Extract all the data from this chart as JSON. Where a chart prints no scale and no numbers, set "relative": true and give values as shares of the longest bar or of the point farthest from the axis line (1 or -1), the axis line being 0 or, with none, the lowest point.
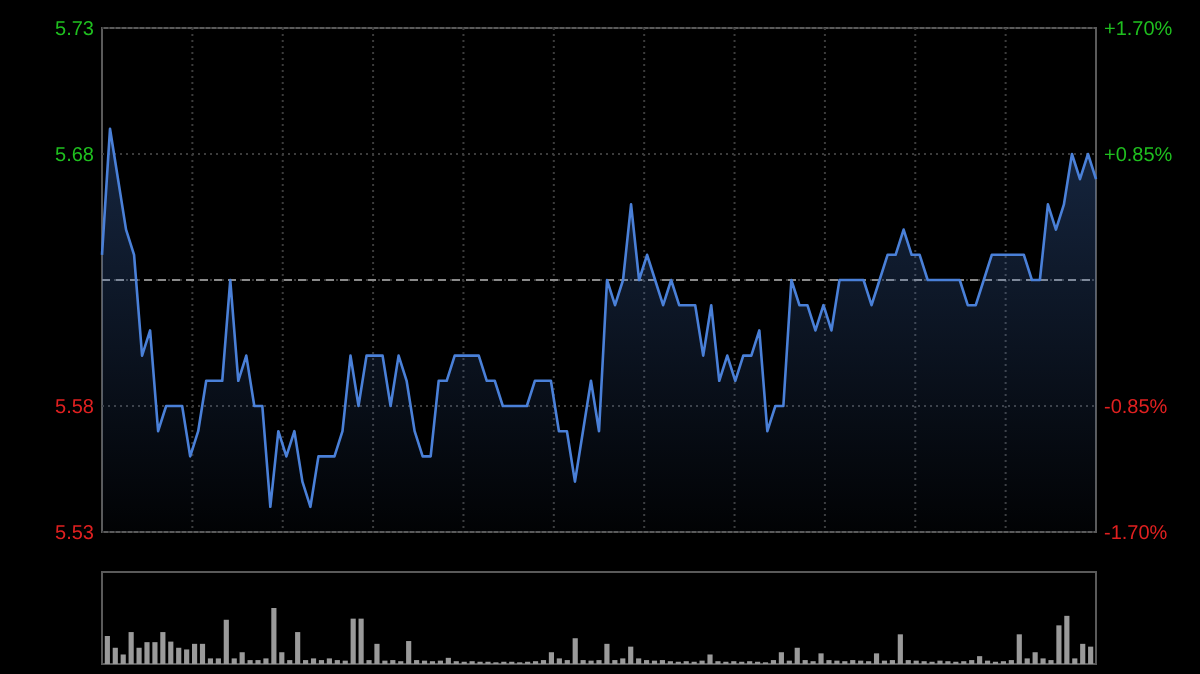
{
  "chart_data": [
    {
      "type": "area",
      "categories": [
        null,
        null,
        null,
        null,
        null,
        null,
        null,
        null,
        null,
        null,
        null,
        null,
        null,
        null,
        null,
        null,
        null,
        null,
        null,
        null,
        null,
        null,
        null,
        null,
        null,
        null,
        null,
        null,
        null,
        null,
        null,
        null,
        null,
        null,
        null,
        null,
        null,
        null,
        null,
        null,
        null,
        null,
        null,
        null,
        null,
        null,
        null,
        null,
        null,
        null,
        null,
        null,
        null,
        null,
        null,
        null,
        null,
        null,
        null,
        null,
        null,
        null,
        null,
        null,
        null,
        null,
        null,
        null,
        null,
        null,
        null,
        null,
        null,
        null,
        null,
        null,
        null,
        null,
        null,
        null,
        null,
        null,
        null,
        null,
        null,
        null,
        null,
        null,
        null,
        null,
        null,
        null,
        null,
        null,
        null,
        null,
        null,
        null,
        null,
        null,
        null,
        null,
        null,
        null,
        null,
        null,
        null,
        null,
        null,
        null,
        null,
        null,
        null,
        null,
        null,
        null,
        null,
        null,
        null,
        null,
        null,
        null,
        null,
        null,
        null
      ],
      "series": [
        {
          "color": "#4a80d8",
          "values": [
            5.64,
            5.69,
            5.67,
            5.65,
            5.64,
            5.6,
            5.61,
            5.57,
            5.58,
            5.58,
            5.58,
            5.56,
            5.57,
            5.59,
            5.59,
            5.59,
            5.63,
            5.59,
            5.6,
            5.58,
            5.58,
            5.54,
            5.57,
            5.56,
            5.57,
            5.55,
            5.54,
            5.56,
            5.56,
            5.56,
            5.57,
            5.6,
            5.58,
            5.6,
            5.6,
            5.6,
            5.58,
            5.6,
            5.59,
            5.57,
            5.56,
            5.56,
            5.59,
            5.59,
            5.6,
            5.6,
            5.6,
            5.6,
            5.59,
            5.59,
            5.58,
            5.58,
            5.58,
            5.58,
            5.59,
            5.59,
            5.59,
            5.57,
            5.57,
            5.55,
            5.57,
            5.59,
            5.57,
            5.63,
            5.62,
            5.63,
            5.66,
            5.63,
            5.64,
            5.63,
            5.62,
            5.63,
            5.62,
            5.62,
            5.62,
            5.6,
            5.62,
            5.59,
            5.6,
            5.59,
            5.6,
            5.6,
            5.61,
            5.57,
            5.58,
            5.58,
            5.63,
            5.62,
            5.62,
            5.61,
            5.62,
            5.61,
            5.63,
            5.63,
            5.63,
            5.63,
            5.62,
            5.63,
            5.64,
            5.64,
            5.65,
            5.64,
            5.64,
            5.63,
            5.63,
            5.63,
            5.63,
            5.63,
            5.62,
            5.62,
            5.63,
            5.64,
            5.64,
            5.64,
            5.64,
            5.64,
            5.63,
            5.63,
            5.66,
            5.65,
            5.66,
            5.68,
            5.67,
            5.68,
            5.67
          ]
        }
      ],
      "ylim": [
        5.53,
        5.73
      ],
      "yticks": [
        5.73,
        5.68,
        {
          "value": 5.63,
          "label": null
        },
        5.58,
        5.53
      ],
      "y2lim": [
        -1.7,
        1.7
      ],
      "y2ticks": [
        {
          "value": 1.7,
          "label": "+1.70%"
        },
        {
          "value": 0.85,
          "label": "+0.85%"
        },
        {
          "value": -0.85,
          "label": "-0.85%"
        },
        {
          "value": -1.7,
          "label": "-1.70%"
        }
      ],
      "ref_lines": [
        {
          "axis": "y",
          "value": 5.63,
          "line_style": "dashed",
          "color": "#8a8a8a"
        }
      ],
      "grid": true
    },
    {
      "type": "bar",
      "relative": true,
      "color": "#9a9a9a",
      "categories": [
        null,
        null,
        null,
        null,
        null,
        null,
        null,
        null,
        null,
        null,
        null,
        null,
        null,
        null,
        null,
        null,
        null,
        null,
        null,
        null,
        null,
        null,
        null,
        null,
        null,
        null,
        null,
        null,
        null,
        null,
        null,
        null,
        null,
        null,
        null,
        null,
        null,
        null,
        null,
        null,
        null,
        null,
        null,
        null,
        null,
        null,
        null,
        null,
        null,
        null,
        null,
        null,
        null,
        null,
        null,
        null,
        null,
        null,
        null,
        null,
        null,
        null,
        null,
        null,
        null,
        null,
        null,
        null,
        null,
        null,
        null,
        null,
        null,
        null,
        null,
        null,
        null,
        null,
        null,
        null,
        null,
        null,
        null,
        null,
        null,
        null,
        null,
        null,
        null,
        null,
        null,
        null,
        null,
        null,
        null,
        null,
        null,
        null,
        null,
        null,
        null,
        null,
        null,
        null,
        null,
        null,
        null,
        null,
        null,
        null,
        null,
        null,
        null,
        null,
        null,
        null,
        null,
        null,
        null,
        null,
        null,
        null,
        null,
        null,
        null
      ],
      "values": [
        0.5,
        0.29,
        0.17,
        0.57,
        0.29,
        0.39,
        0.39,
        0.57,
        0.4,
        0.29,
        0.26,
        0.36,
        0.36,
        0.1,
        0.1,
        0.79,
        0.1,
        0.21,
        0.07,
        0.07,
        0.1,
        1.0,
        0.21,
        0.07,
        0.57,
        0.07,
        0.1,
        0.07,
        0.1,
        0.07,
        0.06,
        0.81,
        0.81,
        0.07,
        0.36,
        0.06,
        0.07,
        0.05,
        0.41,
        0.07,
        0.06,
        0.05,
        0.06,
        0.11,
        0.05,
        0.04,
        0.05,
        0.04,
        0.04,
        0.03,
        0.04,
        0.04,
        0.03,
        0.04,
        0.05,
        0.07,
        0.21,
        0.1,
        0.07,
        0.46,
        0.07,
        0.06,
        0.07,
        0.36,
        0.07,
        0.1,
        0.31,
        0.1,
        0.07,
        0.06,
        0.07,
        0.05,
        0.04,
        0.05,
        0.04,
        0.06,
        0.17,
        0.05,
        0.04,
        0.05,
        0.04,
        0.05,
        0.04,
        0.03,
        0.07,
        0.21,
        0.06,
        0.29,
        0.07,
        0.05,
        0.19,
        0.07,
        0.06,
        0.05,
        0.07,
        0.06,
        0.05,
        0.19,
        0.06,
        0.07,
        0.53,
        0.07,
        0.06,
        0.05,
        0.04,
        0.06,
        0.05,
        0.04,
        0.05,
        0.07,
        0.14,
        0.06,
        0.04,
        0.05,
        0.07,
        0.53,
        0.1,
        0.21,
        0.1,
        0.07,
        0.69,
        0.86,
        0.1,
        0.36,
        0.31
      ]
    }
  ]
}
